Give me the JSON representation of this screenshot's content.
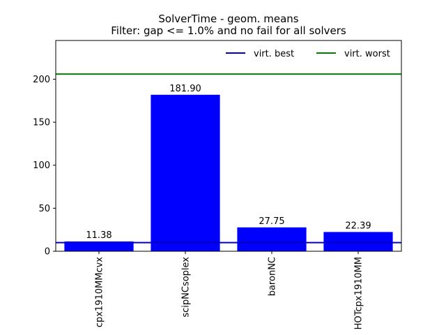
{
  "chart_data": {
    "type": "bar",
    "title": "SolverTime - geom. means",
    "subtitle": "Filter: gap <= 1.0% and no fail for all solvers",
    "categories": [
      "cpx1910MMcvx",
      "scipNCsoplex",
      "baronNC",
      "HOTcpx1910MM"
    ],
    "values": [
      11.38,
      181.9,
      27.75,
      22.39
    ],
    "value_labels": [
      "11.38",
      "181.90",
      "27.75",
      "22.39"
    ],
    "bar_color": "#0000ff",
    "ylim": [
      0,
      245
    ],
    "yticks": [
      0,
      50,
      100,
      150,
      200
    ],
    "grid": false,
    "reference_lines": [
      {
        "name": "virt. best",
        "value": 10.0,
        "color": "#0000bf"
      },
      {
        "name": "virt. worst",
        "value": 206.0,
        "color": "#008000"
      }
    ],
    "legend": {
      "placement": "top-right",
      "entries": [
        "virt. best",
        "virt. worst"
      ]
    }
  }
}
